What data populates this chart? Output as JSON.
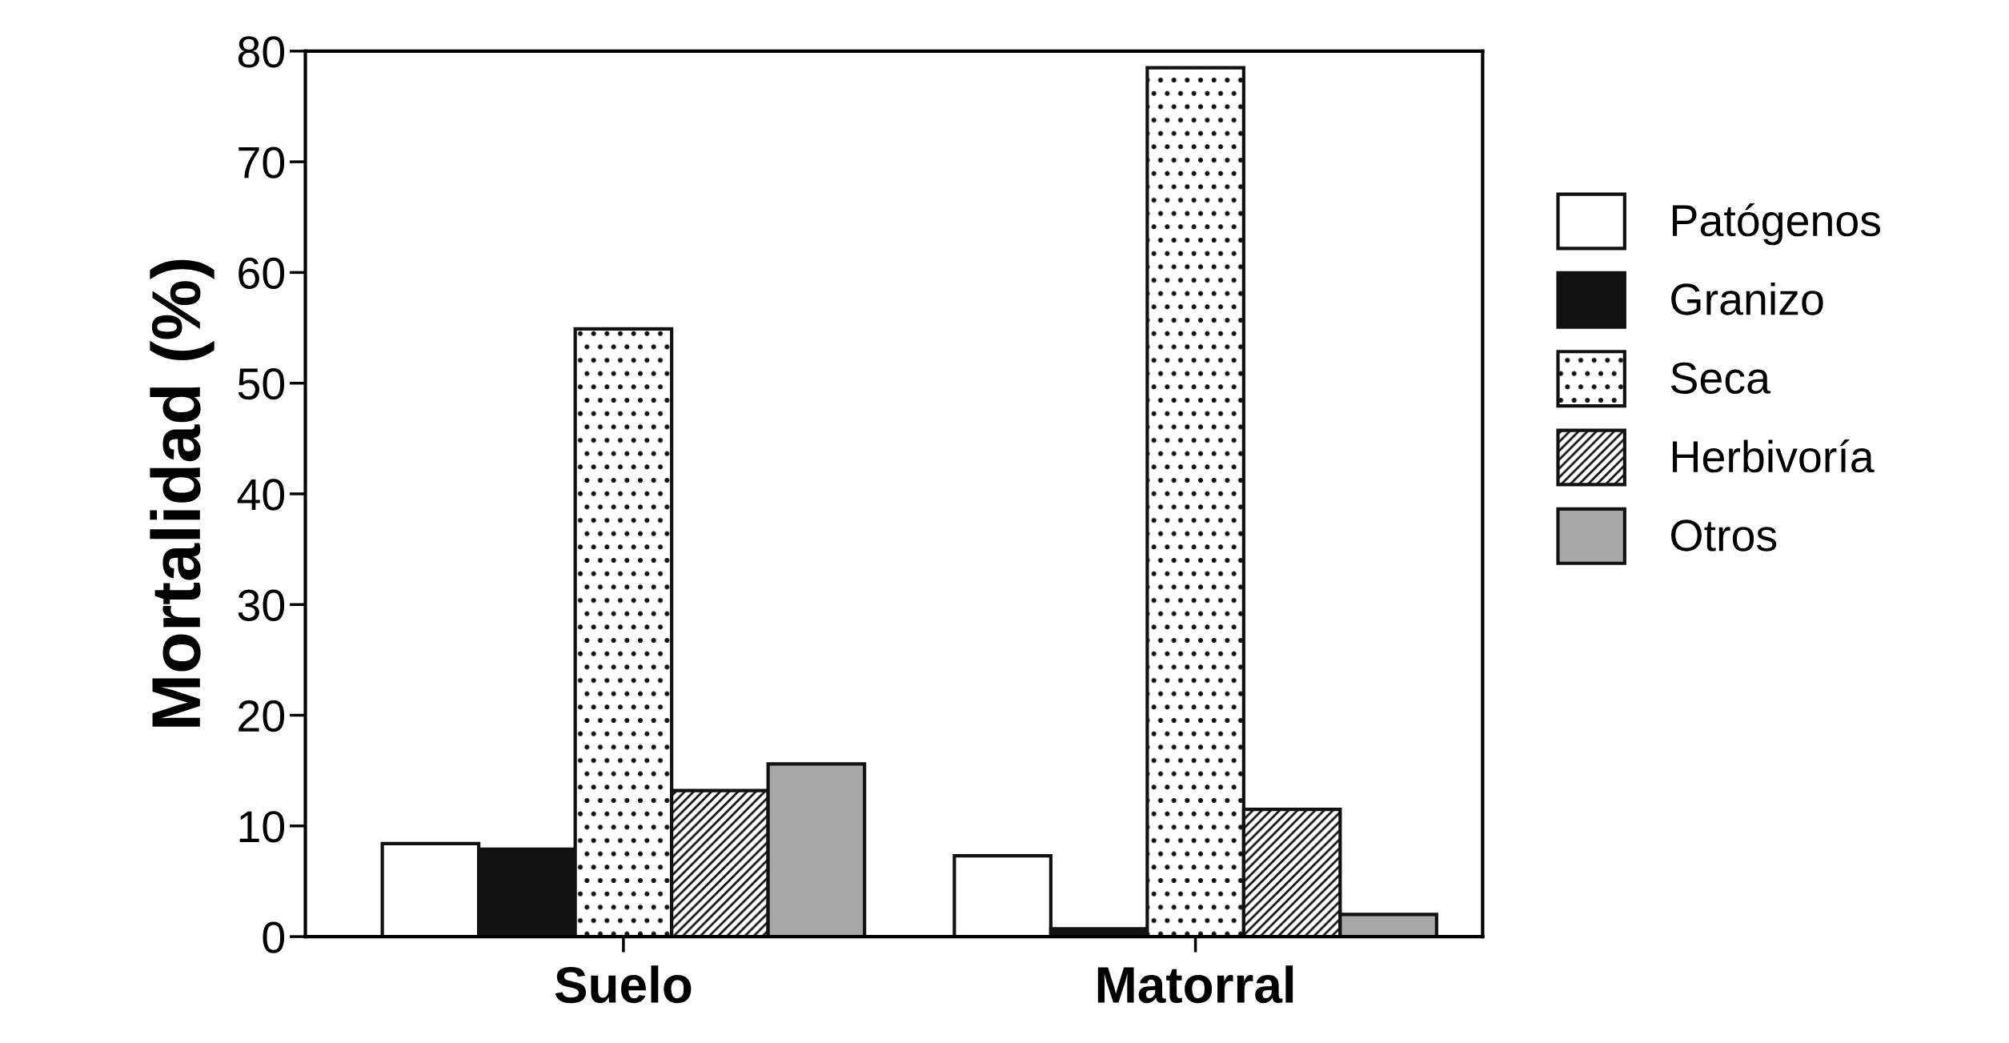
{
  "chart_data": {
    "type": "bar",
    "ylabel": "Mortalidad (%)",
    "categories": [
      "Suelo",
      "Matorral"
    ],
    "series": [
      {
        "name": "Patógenos",
        "color": "#ffffff",
        "values": [
          8.4,
          7.3
        ]
      },
      {
        "name": "Granizo",
        "color": "#111111",
        "values": [
          7.9,
          0.7
        ]
      },
      {
        "name": "Seca",
        "color": "#111111",
        "values": [
          54.9,
          78.5
        ]
      },
      {
        "name": "Herbivoría",
        "color": "#111111",
        "values": [
          13.2,
          11.5
        ]
      },
      {
        "name": "Otros",
        "color": "#a8a8a8",
        "values": [
          15.6,
          2.0
        ]
      }
    ],
    "ylim": [
      0,
      80
    ],
    "yticks": [
      0,
      10,
      20,
      30,
      40,
      50,
      60,
      70,
      80
    ],
    "grid": false,
    "legend": "right"
  }
}
